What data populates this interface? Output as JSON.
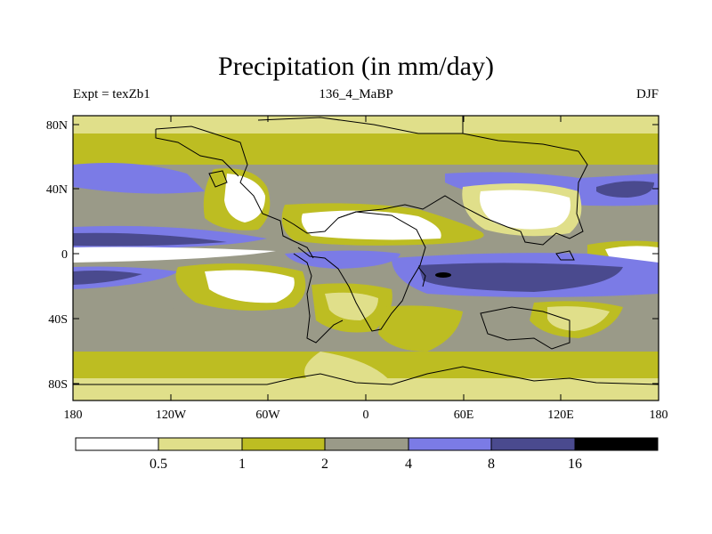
{
  "title": "Precipitation (in mm/day)",
  "subtitle_left": "Expt = texZb1",
  "subtitle_center": "136_4_MaBP",
  "subtitle_right": "DJF",
  "lat_ticks": [
    "80N",
    "40N",
    "0",
    "40S",
    "80S"
  ],
  "lon_ticks": [
    "180",
    "120W",
    "60W",
    "0",
    "60E",
    "120E",
    "180"
  ],
  "legend": {
    "levels": [
      "0.5",
      "1",
      "2",
      "4",
      "8",
      "16"
    ],
    "colors": [
      "#ffffff",
      "#e0df8a",
      "#bdbd22",
      "#9a9a88",
      "#7b7be6",
      "#4a4a8e",
      "#000000"
    ]
  }
}
